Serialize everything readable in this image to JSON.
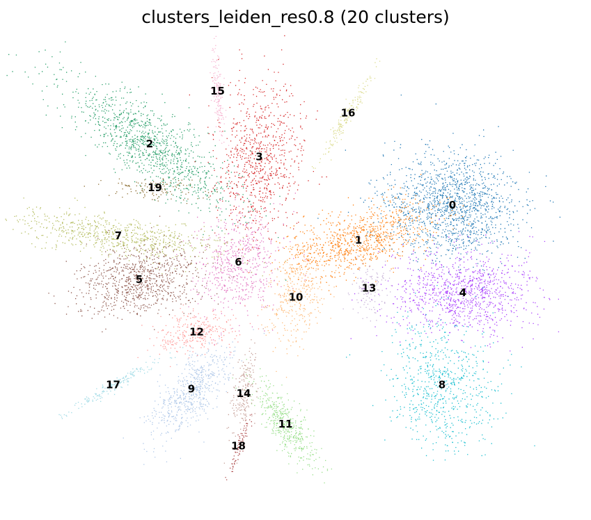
{
  "chart_data": {
    "type": "scatter",
    "title": "clusters_leiden_res0.8 (20 clusters)",
    "xlabel": "",
    "ylabel": "",
    "grid": false,
    "axes_visible": false,
    "legend": "on-data",
    "embedding": "UMAP",
    "xlim": [
      0,
      1
    ],
    "ylim": [
      0,
      1
    ],
    "clusters": [
      {
        "label": "0",
        "color": "#1f77b4",
        "centroid": [
          0.8,
          0.65
        ]
      },
      {
        "label": "1",
        "color": "#ff7f0e",
        "centroid": [
          0.62,
          0.57
        ]
      },
      {
        "label": "2",
        "color": "#279e68",
        "centroid": [
          0.22,
          0.79
        ]
      },
      {
        "label": "3",
        "color": "#d62728",
        "centroid": [
          0.43,
          0.76
        ]
      },
      {
        "label": "4",
        "color": "#aa40fc",
        "centroid": [
          0.82,
          0.45
        ]
      },
      {
        "label": "5",
        "color": "#8c564b",
        "centroid": [
          0.2,
          0.48
        ]
      },
      {
        "label": "6",
        "color": "#e377c2",
        "centroid": [
          0.39,
          0.52
        ]
      },
      {
        "label": "7",
        "color": "#b5bd61",
        "centroid": [
          0.16,
          0.58
        ]
      },
      {
        "label": "8",
        "color": "#17becf",
        "centroid": [
          0.78,
          0.24
        ]
      },
      {
        "label": "9",
        "color": "#aec7e8",
        "centroid": [
          0.3,
          0.23
        ]
      },
      {
        "label": "10",
        "color": "#ffbb78",
        "centroid": [
          0.5,
          0.44
        ]
      },
      {
        "label": "11",
        "color": "#98df8a",
        "centroid": [
          0.48,
          0.15
        ]
      },
      {
        "label": "12",
        "color": "#ff9896",
        "centroid": [
          0.31,
          0.36
        ]
      },
      {
        "label": "13",
        "color": "#c5b0d5",
        "centroid": [
          0.64,
          0.46
        ]
      },
      {
        "label": "14",
        "color": "#c49c94",
        "centroid": [
          0.4,
          0.22
        ]
      },
      {
        "label": "15",
        "color": "#f7b6d2",
        "centroid": [
          0.35,
          0.91
        ]
      },
      {
        "label": "16",
        "color": "#dbdb8d",
        "centroid": [
          0.6,
          0.86
        ]
      },
      {
        "label": "17",
        "color": "#9edae5",
        "centroid": [
          0.15,
          0.24
        ]
      },
      {
        "label": "18",
        "color": "#ad494a",
        "centroid": [
          0.39,
          0.1
        ]
      },
      {
        "label": "19",
        "color": "#8c6d31",
        "centroid": [
          0.23,
          0.69
        ]
      }
    ]
  }
}
